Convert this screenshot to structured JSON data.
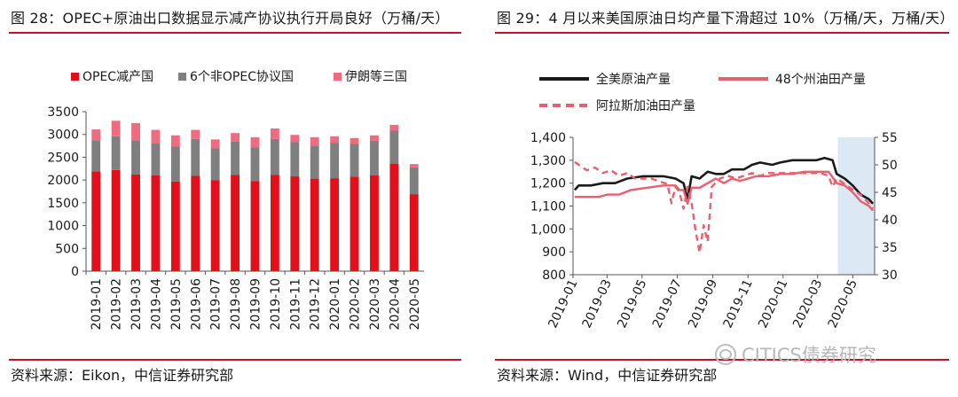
{
  "panels": [
    {
      "title": "图 28：OPEC+原油出口数据显示减产协议执行开局良好（万桶/天）",
      "source": "资料来源：Eikon，中信证券研究部"
    },
    {
      "title": "图 29：4 月以来美国原油日均产量下滑超过 10%（万桶/天，万桶/天）",
      "source": "资料来源：Wind，中信证券研究部"
    }
  ],
  "watermark": "CITICS债券研究",
  "colors": {
    "accent_red": "#c8102e",
    "opec_cut": "#e3101b",
    "non_opec": "#7f7f7f",
    "iran_three": "#ee6b80",
    "us_total": "#1a1a1a",
    "lower48": "#e8606f",
    "alaska": "#e8606f",
    "shade": "#dce8f4"
  },
  "chart_data": [
    {
      "type": "bar",
      "stacked": true,
      "legend_position": "top",
      "categories": [
        "2019-01",
        "2019-02",
        "2019-03",
        "2019-04",
        "2019-05",
        "2019-06",
        "2019-07",
        "2019-08",
        "2019-09",
        "2019-10",
        "2019-11",
        "2019-12",
        "2020-01",
        "2020-02",
        "2020-03",
        "2020-04",
        "2020-05"
      ],
      "series": [
        {
          "name": "OPEC减产国",
          "values": [
            2190,
            2220,
            2120,
            2100,
            1970,
            2090,
            2000,
            2110,
            1980,
            2110,
            2080,
            2030,
            2040,
            2070,
            2100,
            2360,
            1690
          ]
        },
        {
          "name": "6个非OPEC协议国",
          "values": [
            680,
            740,
            750,
            700,
            770,
            810,
            700,
            730,
            740,
            790,
            750,
            720,
            770,
            720,
            760,
            730,
            590
          ]
        },
        {
          "name": "伊朗等三国",
          "values": [
            240,
            340,
            380,
            300,
            240,
            200,
            190,
            190,
            220,
            230,
            160,
            190,
            150,
            130,
            120,
            120,
            70
          ]
        }
      ],
      "ylim": [
        0,
        3500
      ],
      "yticks": [
        0,
        500,
        1000,
        1500,
        2000,
        2500,
        3000,
        3500
      ],
      "grid": false
    },
    {
      "type": "line",
      "legend_position": "top",
      "x_ticks": [
        "2019-01",
        "2019-03",
        "2019-05",
        "2019-07",
        "2019-09",
        "2019-11",
        "2020-01",
        "2020-03",
        "2020-05"
      ],
      "x_range": [
        "2019-01",
        "2020-06"
      ],
      "y_left": {
        "ylim": [
          800,
          1400
        ],
        "ticks": [
          "800",
          "900",
          "1,000",
          "1,100",
          "1,200",
          "1,300",
          "1,400"
        ]
      },
      "y_right": {
        "ylim": [
          30,
          55
        ],
        "ticks": [
          "30",
          "35",
          "40",
          "45",
          "50",
          "55"
        ]
      },
      "shaded_region": [
        "2020-04",
        "2020-06"
      ],
      "series": [
        {
          "name": "全美原油产量",
          "axis": "left",
          "style": "solid",
          "points": [
            [
              "2019-01-04",
              1170
            ],
            [
              "2019-01-11",
              1190
            ],
            [
              "2019-02-01",
              1190
            ],
            [
              "2019-02-22",
              1200
            ],
            [
              "2019-03-15",
              1200
            ],
            [
              "2019-04-05",
              1220
            ],
            [
              "2019-05-03",
              1230
            ],
            [
              "2019-06-07",
              1230
            ],
            [
              "2019-06-28",
              1220
            ],
            [
              "2019-07-12",
              1200
            ],
            [
              "2019-07-19",
              1130
            ],
            [
              "2019-07-26",
              1230
            ],
            [
              "2019-08-09",
              1220
            ],
            [
              "2019-08-23",
              1250
            ],
            [
              "2019-09-06",
              1240
            ],
            [
              "2019-09-20",
              1240
            ],
            [
              "2019-10-04",
              1260
            ],
            [
              "2019-10-25",
              1260
            ],
            [
              "2019-11-08",
              1280
            ],
            [
              "2019-11-22",
              1290
            ],
            [
              "2019-12-13",
              1280
            ],
            [
              "2019-12-27",
              1290
            ],
            [
              "2020-01-17",
              1300
            ],
            [
              "2020-02-07",
              1300
            ],
            [
              "2020-02-28",
              1300
            ],
            [
              "2020-03-13",
              1310
            ],
            [
              "2020-03-27",
              1300
            ],
            [
              "2020-04-03",
              1240
            ],
            [
              "2020-04-17",
              1220
            ],
            [
              "2020-05-01",
              1190
            ],
            [
              "2020-05-15",
              1150
            ],
            [
              "2020-05-29",
              1130
            ],
            [
              "2020-06-05",
              1110
            ]
          ]
        },
        {
          "name": "48个州油田产量",
          "axis": "left",
          "style": "solid",
          "points": [
            [
              "2019-01-04",
              1140
            ],
            [
              "2019-01-18",
              1140
            ],
            [
              "2019-02-15",
              1140
            ],
            [
              "2019-03-01",
              1150
            ],
            [
              "2019-03-22",
              1150
            ],
            [
              "2019-04-12",
              1170
            ],
            [
              "2019-05-10",
              1180
            ],
            [
              "2019-06-07",
              1190
            ],
            [
              "2019-06-28",
              1190
            ],
            [
              "2019-07-05",
              1170
            ],
            [
              "2019-07-12",
              1170
            ],
            [
              "2019-07-19",
              1110
            ],
            [
              "2019-07-26",
              1180
            ],
            [
              "2019-08-09",
              1180
            ],
            [
              "2019-08-23",
              1200
            ],
            [
              "2019-09-06",
              1220
            ],
            [
              "2019-09-20",
              1200
            ],
            [
              "2019-10-04",
              1220
            ],
            [
              "2019-10-18",
              1210
            ],
            [
              "2019-11-01",
              1220
            ],
            [
              "2019-11-15",
              1230
            ],
            [
              "2019-12-06",
              1230
            ],
            [
              "2019-12-27",
              1240
            ],
            [
              "2020-01-17",
              1240
            ],
            [
              "2020-02-07",
              1250
            ],
            [
              "2020-02-28",
              1250
            ],
            [
              "2020-03-20",
              1250
            ],
            [
              "2020-04-03",
              1200
            ],
            [
              "2020-04-17",
              1190
            ],
            [
              "2020-05-01",
              1160
            ],
            [
              "2020-05-15",
              1120
            ],
            [
              "2020-05-29",
              1100
            ],
            [
              "2020-06-05",
              1080
            ]
          ]
        },
        {
          "name": "阿拉斯加油田产量",
          "axis": "right",
          "style": "dashed",
          "points": [
            [
              "2019-01-04",
              50.5
            ],
            [
              "2019-01-11",
              50.0
            ],
            [
              "2019-01-25",
              49.0
            ],
            [
              "2019-02-08",
              49.5
            ],
            [
              "2019-02-22",
              48.5
            ],
            [
              "2019-03-08",
              49.0
            ],
            [
              "2019-03-22",
              48.0
            ],
            [
              "2019-04-05",
              48.5
            ],
            [
              "2019-04-19",
              47.5
            ],
            [
              "2019-05-03",
              47.5
            ],
            [
              "2019-05-17",
              47.5
            ],
            [
              "2019-05-31",
              47.0
            ],
            [
              "2019-06-14",
              46.5
            ],
            [
              "2019-06-21",
              43.0
            ],
            [
              "2019-06-28",
              46.0
            ],
            [
              "2019-07-05",
              45.0
            ],
            [
              "2019-07-12",
              42.0
            ],
            [
              "2019-07-19",
              46.0
            ],
            [
              "2019-07-26",
              43.0
            ],
            [
              "2019-08-02",
              38.0
            ],
            [
              "2019-08-09",
              34.0
            ],
            [
              "2019-08-16",
              39.0
            ],
            [
              "2019-08-23",
              36.0
            ],
            [
              "2019-08-30",
              46.0
            ],
            [
              "2019-09-13",
              47.5
            ],
            [
              "2019-09-27",
              48.0
            ],
            [
              "2019-10-11",
              47.5
            ],
            [
              "2019-10-25",
              48.0
            ],
            [
              "2019-11-08",
              48.5
            ],
            [
              "2019-11-22",
              48.0
            ],
            [
              "2019-12-06",
              48.5
            ],
            [
              "2019-12-20",
              48.5
            ],
            [
              "2020-01-10",
              48.5
            ],
            [
              "2020-01-31",
              48.5
            ],
            [
              "2020-02-21",
              48.5
            ],
            [
              "2020-03-06",
              48.5
            ],
            [
              "2020-03-20",
              48.0
            ],
            [
              "2020-03-27",
              46.0
            ],
            [
              "2020-04-03",
              47.5
            ],
            [
              "2020-04-17",
              46.5
            ],
            [
              "2020-05-01",
              45.5
            ],
            [
              "2020-05-15",
              44.5
            ],
            [
              "2020-05-29",
              43.0
            ],
            [
              "2020-06-05",
              42.0
            ]
          ]
        }
      ]
    }
  ]
}
